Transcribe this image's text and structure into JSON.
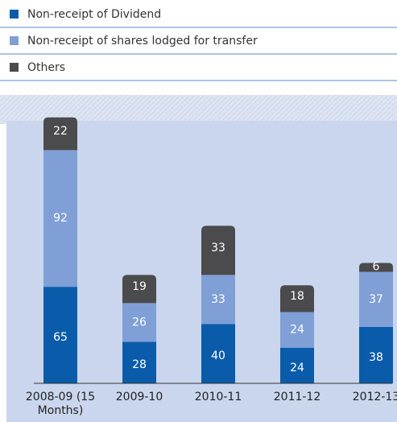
{
  "chart_data": {
    "type": "stacked_bar",
    "categories": [
      "2008-09 (15 Months)",
      "2009-10",
      "2010-11",
      "2011-12",
      "2012-13"
    ],
    "series": [
      {
        "name": "Non-receipt of Dividend",
        "color": "#0a5caa",
        "values": [
          65,
          28,
          40,
          24,
          38
        ]
      },
      {
        "name": "Non-receipt of shares lodged for transfer",
        "color": "#7f9fd6",
        "values": [
          92,
          26,
          33,
          24,
          37
        ]
      },
      {
        "name": "Others",
        "color": "#4b4b4d",
        "values": [
          22,
          19,
          33,
          18,
          6
        ]
      }
    ]
  }
}
